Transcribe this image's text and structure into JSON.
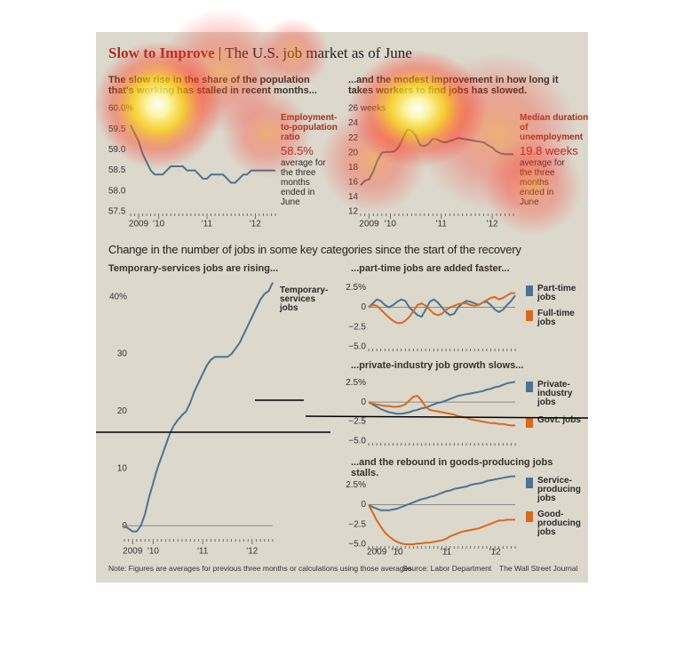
{
  "header": {
    "title": "Slow to Improve",
    "subtitle": "The U.S. job market as of June"
  },
  "section_title": "Change in the number of jobs in some key categories since the start of the recovery",
  "footer": {
    "note": "Note: Figures are averages for previous three months or calculations using those averages",
    "source": "Source: Labor Department",
    "credit": "The Wall Street Journal"
  },
  "chart_data": [
    {
      "type": "line",
      "subtitle": "The slow rise in the share of the population that's working has stalled in recent months...",
      "categories": [
        null,
        null,
        "2009",
        null,
        null,
        null,
        null,
        "'10",
        null,
        null,
        null,
        null,
        null,
        null,
        null,
        null,
        null,
        null,
        null,
        "'11",
        null,
        null,
        null,
        null,
        null,
        null,
        null,
        null,
        null,
        null,
        null,
        "'12",
        null,
        null,
        null,
        null,
        null
      ],
      "values": [
        59.6,
        59.4,
        59.2,
        58.9,
        58.7,
        58.5,
        58.4,
        58.4,
        58.4,
        58.5,
        58.6,
        58.6,
        58.6,
        58.6,
        58.5,
        58.5,
        58.5,
        58.4,
        58.3,
        58.3,
        58.4,
        58.4,
        58.4,
        58.4,
        58.3,
        58.2,
        58.2,
        58.3,
        58.4,
        58.4,
        58.5,
        58.5,
        58.5,
        58.5,
        58.5,
        58.5,
        58.5
      ],
      "color": "#4a7394",
      "ylim": [
        57.5,
        60.0
      ],
      "yticks": [
        57.5,
        {
          "value": 58.0,
          "label": "58.0"
        },
        58.5,
        {
          "value": 59.0,
          "label": "59.0"
        },
        59.5,
        {
          "value": 60.0,
          "label": "60.0%"
        }
      ],
      "grid": false,
      "annotation": {
        "label": "Employment-to-population ratio",
        "value_text": "58.5%",
        "note": "average for the three months ended in June"
      }
    },
    {
      "type": "line",
      "subtitle": "...and the modest improvement in how long it takes workers to find jobs has slowed.",
      "categories": [
        null,
        null,
        "2009",
        null,
        null,
        null,
        null,
        "'10",
        null,
        null,
        null,
        null,
        null,
        null,
        null,
        null,
        null,
        null,
        null,
        "'11",
        null,
        null,
        null,
        null,
        null,
        null,
        null,
        null,
        null,
        null,
        null,
        "'12",
        null,
        null,
        null,
        null,
        null
      ],
      "values": [
        15.6,
        16.2,
        16.4,
        17.5,
        19.0,
        20.0,
        20.1,
        20.1,
        20.2,
        20.8,
        22.0,
        23.2,
        23.0,
        22.3,
        21.0,
        20.9,
        21.2,
        21.9,
        21.8,
        21.5,
        21.4,
        21.6,
        21.8,
        22.0,
        21.9,
        21.8,
        21.7,
        21.6,
        21.5,
        21.4,
        21.0,
        20.7,
        20.2,
        19.9,
        19.8,
        19.8,
        19.8
      ],
      "color": "#4a7394",
      "ylim": [
        12,
        26
      ],
      "yticks": [
        12,
        14,
        16,
        18,
        20,
        22,
        24,
        {
          "value": 26,
          "label": "26 weeks"
        }
      ],
      "grid": false,
      "annotation": {
        "label": "Median duration of unemployment",
        "value_text": "19.8 weeks",
        "note": "average for the three months ended in June"
      }
    },
    {
      "type": "line",
      "subtitle": "Temporary-services jobs are rising...",
      "categories": [
        null,
        null,
        "2009",
        null,
        null,
        null,
        null,
        "'10",
        null,
        null,
        null,
        null,
        null,
        null,
        null,
        null,
        null,
        null,
        null,
        "'11",
        null,
        null,
        null,
        null,
        null,
        null,
        null,
        null,
        null,
        null,
        null,
        "'12",
        null,
        null,
        null,
        null,
        null
      ],
      "series": [
        {
          "name": "Temporary-services jobs",
          "color": "#4a7394",
          "values": [
            0,
            -0.5,
            -1,
            -1,
            0,
            2,
            5,
            7.5,
            10,
            12,
            14,
            16,
            17.5,
            18.5,
            19.3,
            20,
            21.5,
            23.5,
            25,
            26.5,
            28,
            29,
            29.5,
            29.5,
            29.5,
            29.5,
            30,
            31,
            32,
            33.5,
            35,
            36.5,
            38,
            39.5,
            40.5,
            41,
            42.5
          ]
        }
      ],
      "ylim": [
        -2,
        44
      ],
      "yticks": [
        0,
        10,
        20,
        30,
        {
          "value": 40,
          "label": "40%"
        }
      ],
      "grid": false
    },
    {
      "type": "line",
      "subtitle": "...part-time jobs are added faster...",
      "categories": [
        null,
        null,
        null,
        null,
        null,
        null,
        null,
        null,
        null,
        null,
        null,
        null,
        null,
        null,
        null,
        null,
        null,
        null,
        null,
        null,
        null,
        null,
        null,
        null,
        null,
        null,
        null,
        null,
        null,
        null,
        null,
        null,
        null,
        null,
        null,
        null,
        null
      ],
      "series": [
        {
          "name": "Part-time jobs",
          "color": "#4a7394",
          "values": [
            0,
            0.5,
            1,
            0.8,
            0.3,
            0,
            0.3,
            0.7,
            1,
            0.8,
            0,
            -0.5,
            -1,
            -1.2,
            -0.3,
            0.7,
            1,
            0.6,
            0,
            -0.6,
            -1,
            -0.8,
            0,
            0.5,
            0.8,
            0.7,
            0.5,
            0.3,
            0.6,
            0.7,
            0.3,
            -0.3,
            -0.6,
            -0.3,
            0.3,
            0.8,
            1.5
          ]
        },
        {
          "name": "Full-time jobs",
          "color": "#d9691f",
          "values": [
            0,
            0.3,
            0.2,
            -0.3,
            -0.8,
            -1.3,
            -1.7,
            -2,
            -2,
            -1.7,
            -1.2,
            -0.5,
            0.3,
            0.5,
            0.2,
            -0.3,
            -0.8,
            -1,
            -0.8,
            -0.3,
            0,
            0.2,
            0.4,
            0.5,
            0.5,
            0.3,
            0.2,
            0.3,
            0.6,
            0.9,
            1.2,
            1.3,
            1.0,
            1.2,
            1.5,
            1.8,
            1.8
          ]
        }
      ],
      "ylim": [
        -5,
        4
      ],
      "yticks": [
        {
          "value": -5.0,
          "label": "−5.0"
        },
        {
          "value": -2.5,
          "label": "−2.5"
        },
        0,
        {
          "value": 2.5,
          "label": "2.5%"
        }
      ],
      "grid": false
    },
    {
      "type": "line",
      "subtitle": "...private-industry job growth slows...",
      "categories": [
        null,
        null,
        null,
        null,
        null,
        null,
        null,
        null,
        null,
        null,
        null,
        null,
        null,
        null,
        null,
        null,
        null,
        null,
        null,
        null,
        null,
        null,
        null,
        null,
        null,
        null,
        null,
        null,
        null,
        null,
        null,
        null,
        null,
        null,
        null,
        null,
        null
      ],
      "series": [
        {
          "name": "Private-industry jobs",
          "color": "#4a7394",
          "values": [
            0,
            -0.3,
            -0.6,
            -0.9,
            -1.1,
            -1.3,
            -1.4,
            -1.5,
            -1.5,
            -1.4,
            -1.3,
            -1.1,
            -1.0,
            -0.8,
            -0.7,
            -0.5,
            -0.3,
            -0.1,
            0,
            0.2,
            0.4,
            0.6,
            0.8,
            0.9,
            1.0,
            1.1,
            1.2,
            1.3,
            1.4,
            1.6,
            1.7,
            1.9,
            2.0,
            2.2,
            2.4,
            2.5,
            2.6
          ]
        },
        {
          "name": "Govt. jobs",
          "color": "#d9691f",
          "values": [
            0,
            -0.2,
            -0.3,
            -0.4,
            -0.5,
            -0.5,
            -0.6,
            -0.6,
            -0.5,
            -0.3,
            0.2,
            0.7,
            0.8,
            0.2,
            -0.6,
            -1.0,
            -1.1,
            -1.2,
            -1.3,
            -1.4,
            -1.5,
            -1.6,
            -1.8,
            -1.9,
            -2.0,
            -2.2,
            -2.3,
            -2.4,
            -2.5,
            -2.6,
            -2.7,
            -2.7,
            -2.8,
            -2.8,
            -2.9,
            -3.0,
            -3.0
          ]
        }
      ],
      "ylim": [
        -5,
        4
      ],
      "yticks": [
        {
          "value": -5.0,
          "label": "−5.0"
        },
        {
          "value": -2.5,
          "label": "−2.5"
        },
        0,
        {
          "value": 2.5,
          "label": "2.5%"
        }
      ],
      "grid": false
    },
    {
      "type": "line",
      "subtitle": "...and the rebound in goods-producing jobs stalls.",
      "categories": [
        null,
        null,
        "2009",
        null,
        null,
        null,
        null,
        "'10",
        null,
        null,
        null,
        null,
        null,
        null,
        null,
        null,
        null,
        null,
        null,
        "'11",
        null,
        null,
        null,
        null,
        null,
        null,
        null,
        null,
        null,
        null,
        null,
        "'12",
        null,
        null,
        null,
        null,
        null
      ],
      "series": [
        {
          "name": "Service-producing jobs",
          "color": "#4a7394",
          "values": [
            0,
            -0.3,
            -0.5,
            -0.7,
            -0.7,
            -0.7,
            -0.6,
            -0.5,
            -0.3,
            -0.1,
            0.1,
            0.3,
            0.5,
            0.7,
            0.8,
            1.0,
            1.1,
            1.3,
            1.5,
            1.7,
            1.8,
            2.0,
            2.1,
            2.2,
            2.3,
            2.5,
            2.6,
            2.7,
            2.8,
            3.0,
            3.1,
            3.2,
            3.3,
            3.4,
            3.5,
            3.6,
            3.6
          ]
        },
        {
          "name": "Good-producing jobs",
          "color": "#d9691f",
          "values": [
            0,
            -1.0,
            -2.0,
            -2.8,
            -3.5,
            -4.0,
            -4.4,
            -4.7,
            -4.9,
            -5.0,
            -5.0,
            -5.0,
            -4.9,
            -4.9,
            -4.8,
            -4.8,
            -4.7,
            -4.6,
            -4.5,
            -4.3,
            -4.0,
            -3.8,
            -3.6,
            -3.4,
            -3.3,
            -3.2,
            -3.1,
            -3.0,
            -2.8,
            -2.6,
            -2.4,
            -2.2,
            -2.0,
            -2.0,
            -1.9,
            -1.9,
            -1.9
          ]
        }
      ],
      "ylim": [
        -5,
        4
      ],
      "yticks": [
        {
          "value": -5.0,
          "label": "−5.0"
        },
        {
          "value": -2.5,
          "label": "−2.5"
        },
        0,
        {
          "value": 2.5,
          "label": "2.5%"
        }
      ],
      "grid": false
    }
  ]
}
